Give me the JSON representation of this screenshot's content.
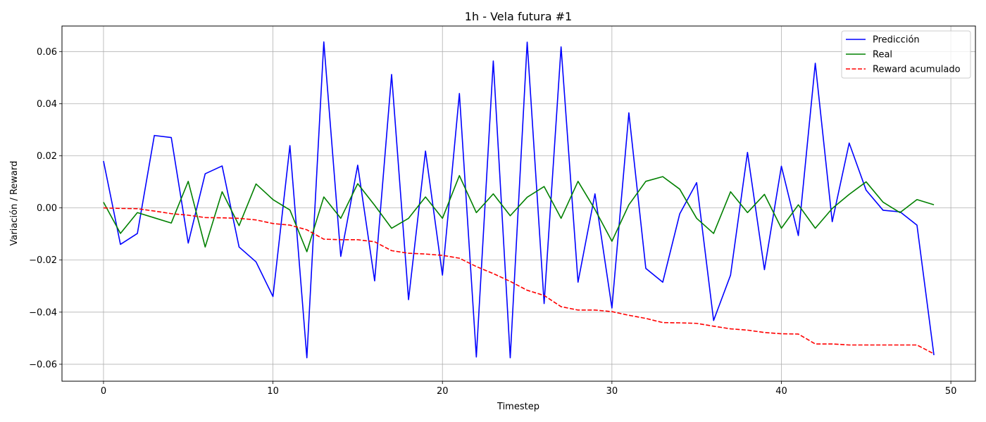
{
  "chart_data": {
    "type": "line",
    "title": "1h - Vela futura #1",
    "xlabel": "Timestep",
    "ylabel": "Variación / Reward",
    "xlim": [
      -2.45,
      51.45
    ],
    "ylim": [
      -0.0665,
      0.0698
    ],
    "xticks": [
      0,
      10,
      20,
      30,
      40,
      50
    ],
    "xtick_labels": [
      "0",
      "10",
      "20",
      "30",
      "40",
      "50"
    ],
    "yticks": [
      -0.06,
      -0.04,
      -0.02,
      0.0,
      0.02,
      0.04,
      0.06
    ],
    "ytick_labels": [
      "−0.06",
      "−0.04",
      "−0.02",
      "0.00",
      "0.02",
      "0.04",
      "0.06"
    ],
    "grid": true,
    "legend_position": "top-right",
    "x": [
      0,
      1,
      2,
      3,
      4,
      5,
      6,
      7,
      8,
      9,
      10,
      11,
      12,
      13,
      14,
      15,
      16,
      17,
      18,
      19,
      20,
      21,
      22,
      23,
      24,
      25,
      26,
      27,
      28,
      29,
      30,
      31,
      32,
      33,
      34,
      35,
      36,
      37,
      38,
      39,
      40,
      41,
      42,
      43,
      44,
      45,
      46,
      47,
      48,
      49
    ],
    "series": [
      {
        "name": "Predicción",
        "color": "#0000ff",
        "style": "solid",
        "values": [
          0.018,
          -0.014,
          -0.0098,
          0.0278,
          0.027,
          -0.0135,
          0.0131,
          0.0161,
          -0.015,
          -0.0207,
          -0.034,
          0.0239,
          -0.0575,
          0.0637,
          -0.0186,
          0.0164,
          -0.028,
          0.0512,
          -0.0352,
          0.0218,
          -0.0258,
          0.0439,
          -0.0572,
          0.0564,
          -0.0575,
          0.0636,
          -0.0367,
          0.0618,
          -0.0285,
          0.0054,
          -0.0384,
          0.0365,
          -0.0232,
          -0.0285,
          -0.0023,
          0.0097,
          -0.0432,
          -0.0258,
          0.0213,
          -0.0237,
          0.016,
          -0.0106,
          0.0555,
          -0.0053,
          0.0249,
          0.0068,
          -0.0009,
          -0.0015,
          -0.0066,
          -0.0565
        ]
      },
      {
        "name": "Real",
        "color": "#008000",
        "style": "solid",
        "values": [
          0.0022,
          -0.0098,
          -0.0018,
          -0.0038,
          -0.0058,
          0.0102,
          -0.015,
          0.0062,
          -0.0068,
          0.0092,
          0.0032,
          -0.0008,
          -0.0168,
          0.0042,
          -0.004,
          0.0093,
          0.001,
          -0.0078,
          -0.004,
          0.0042,
          -0.004,
          0.0124,
          -0.0018,
          0.0054,
          -0.003,
          0.0041,
          0.0082,
          -0.004,
          0.0102,
          -0.0006,
          -0.0128,
          0.0012,
          0.0102,
          0.012,
          0.0072,
          -0.004,
          -0.0098,
          0.0062,
          -0.0018,
          0.0052,
          -0.0078,
          0.0012,
          -0.0078,
          -0.0002,
          0.0052,
          0.01,
          0.0022,
          -0.0018,
          0.0032,
          0.0012
        ]
      },
      {
        "name": "Reward acumulado",
        "color": "#ff0000",
        "style": "dashed",
        "values": [
          0.0,
          -0.0002,
          -0.0003,
          -0.0012,
          -0.0022,
          -0.0028,
          -0.0037,
          -0.0038,
          -0.004,
          -0.0046,
          -0.006,
          -0.0066,
          -0.0084,
          -0.012,
          -0.0122,
          -0.0122,
          -0.013,
          -0.0164,
          -0.0174,
          -0.0177,
          -0.0182,
          -0.0193,
          -0.0225,
          -0.0252,
          -0.0282,
          -0.0316,
          -0.0336,
          -0.0379,
          -0.0392,
          -0.0392,
          -0.0398,
          -0.0412,
          -0.0424,
          -0.044,
          -0.0441,
          -0.0443,
          -0.0454,
          -0.0464,
          -0.0469,
          -0.0478,
          -0.0483,
          -0.0484,
          -0.0522,
          -0.0522,
          -0.0526,
          -0.0526,
          -0.0526,
          -0.0526,
          -0.0526,
          -0.056
        ]
      }
    ]
  }
}
